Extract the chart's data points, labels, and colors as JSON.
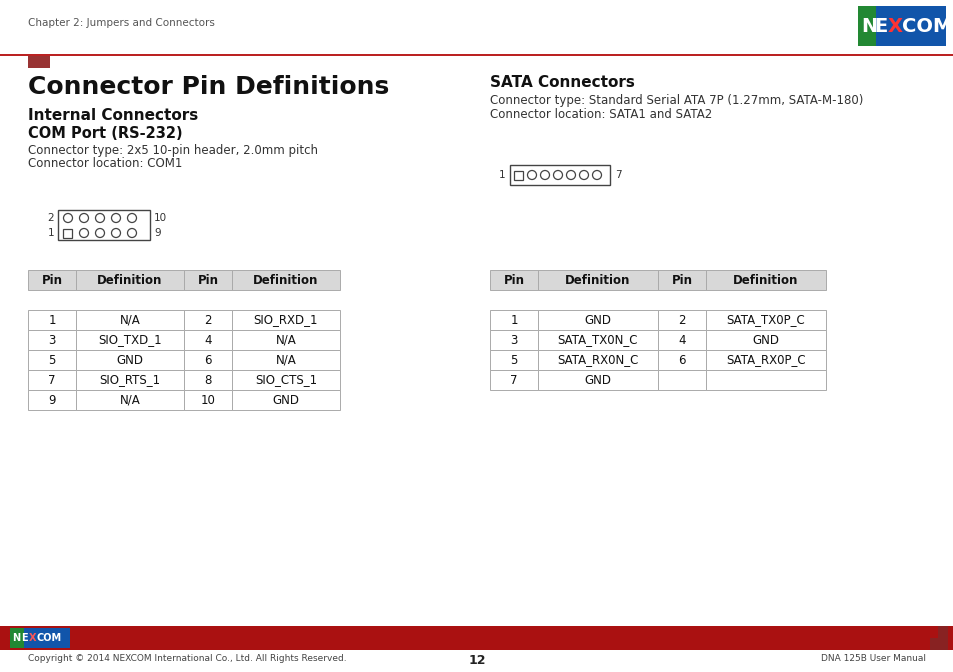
{
  "page_title": "Chapter 2: Jumpers and Connectors",
  "main_title": "Connector Pin Definitions",
  "section1_title": "Internal Connectors",
  "section1_sub": "COM Port (RS-232)",
  "com_desc1": "Connector type: 2x5 10-pin header, 2.0mm pitch",
  "com_desc2": "Connector location: COM1",
  "section2_title": "SATA Connectors",
  "sata_desc1": "Connector type: Standard Serial ATA 7P (1.27mm, SATA-M-180)",
  "sata_desc2": "Connector location: SATA1 and SATA2",
  "com_table_headers": [
    "Pin",
    "Definition",
    "Pin",
    "Definition"
  ],
  "com_table_rows": [
    [
      "1",
      "N/A",
      "2",
      "SIO_RXD_1"
    ],
    [
      "3",
      "SIO_TXD_1",
      "4",
      "N/A"
    ],
    [
      "5",
      "GND",
      "6",
      "N/A"
    ],
    [
      "7",
      "SIO_RTS_1",
      "8",
      "SIO_CTS_1"
    ],
    [
      "9",
      "N/A",
      "10",
      "GND"
    ]
  ],
  "sata_table_headers": [
    "Pin",
    "Definition",
    "Pin",
    "Definition"
  ],
  "sata_table_rows": [
    [
      "1",
      "GND",
      "2",
      "SATA_TX0P_C"
    ],
    [
      "3",
      "SATA_TX0N_C",
      "4",
      "GND"
    ],
    [
      "5",
      "SATA_RX0N_C",
      "6",
      "SATA_RX0P_C"
    ],
    [
      "7",
      "GND",
      "",
      ""
    ]
  ],
  "footer_left": "Copyright © 2014 NEXCOM International Co., Ltd. All Rights Reserved.",
  "footer_center": "12",
  "footer_right": "DNA 125B User Manual",
  "bg_color": "#ffffff",
  "header_line_color": "#bb2222",
  "nexcom_blue": "#1a7a2a",
  "nexcom_bg": "#1155aa",
  "nexcom_red": "#cc2222",
  "footer_bar_color": "#aa1111"
}
